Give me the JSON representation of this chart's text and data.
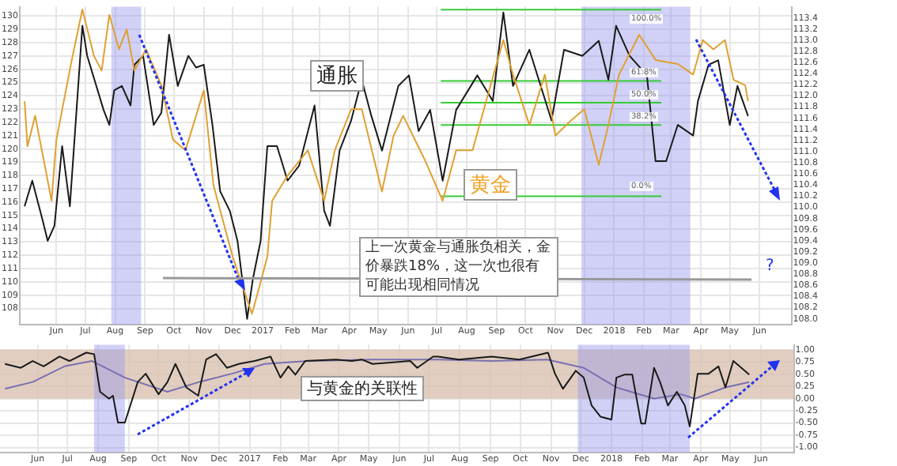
{
  "chart_data": [
    {
      "type": "line",
      "marker": "none",
      "line_style": "solid",
      "grid": true,
      "xlim": [
        "2016-04-24",
        "2018-07-04"
      ],
      "xticks": [
        {
          "value": "2016-06-01",
          "label": "Jun"
        },
        {
          "value": "2016-07-01",
          "label": "Jul"
        },
        {
          "value": "2016-08-01",
          "label": "Aug"
        },
        {
          "value": "2016-09-01",
          "label": "Sep"
        },
        {
          "value": "2016-10-01",
          "label": "Oct"
        },
        {
          "value": "2016-11-01",
          "label": "Nov"
        },
        {
          "value": "2016-12-01",
          "label": "Dec"
        },
        {
          "value": "2017-01-01",
          "label": "2017"
        },
        {
          "value": "2017-02-01",
          "label": "Feb"
        },
        {
          "value": "2017-03-01",
          "label": "Mar"
        },
        {
          "value": "2017-04-01",
          "label": "Apr"
        },
        {
          "value": "2017-05-01",
          "label": "May"
        },
        {
          "value": "2017-06-01",
          "label": "Jun"
        },
        {
          "value": "2017-07-01",
          "label": "Jul"
        },
        {
          "value": "2017-08-01",
          "label": "Aug"
        },
        {
          "value": "2017-09-01",
          "label": "Sep"
        },
        {
          "value": "2017-10-01",
          "label": "Oct"
        },
        {
          "value": "2017-11-01",
          "label": "Nov"
        },
        {
          "value": "2017-12-01",
          "label": "Dec"
        },
        {
          "value": "2018-01-01",
          "label": "2018"
        },
        {
          "value": "2018-02-01",
          "label": "Feb"
        },
        {
          "value": "2018-03-01",
          "label": "Mar"
        },
        {
          "value": "2018-04-01",
          "label": "Apr"
        },
        {
          "value": "2018-05-01",
          "label": "May"
        },
        {
          "value": "2018-06-01",
          "label": "Jun"
        }
      ],
      "ylim": [
        106.8,
        130.7
      ],
      "yticks": [
        108,
        109,
        110,
        111,
        112,
        113,
        114,
        115,
        116,
        117,
        118,
        119,
        120,
        121,
        122,
        123,
        124,
        125,
        126,
        127,
        128,
        129,
        130
      ],
      "y2lim": [
        107.9,
        113.6
      ],
      "y2ticks": [
        {
          "value": 108,
          "label": "108.0"
        },
        108.2,
        108.4,
        108.6,
        108.8,
        {
          "value": 109,
          "label": "109.0"
        },
        109.2,
        109.4,
        109.6,
        109.8,
        {
          "value": 110,
          "label": "110.0"
        },
        110.2,
        110.4,
        110.6,
        110.8,
        {
          "value": 111,
          "label": "111.0"
        },
        111.2,
        111.4,
        111.6,
        111.8,
        {
          "value": 112,
          "label": "112.0"
        },
        112.2,
        112.4,
        112.6,
        112.8,
        {
          "value": 113,
          "label": "113.0"
        },
        113.2,
        113.4
      ],
      "series": [
        {
          "color": "#e0a030",
          "x": [
            "2016-04-29",
            "2016-05-02",
            "2016-05-10",
            "2016-05-22",
            "2016-05-27",
            "2016-06-01",
            "2016-06-17",
            "2016-06-28",
            "2016-07-10",
            "2016-07-18",
            "2016-07-26",
            "2016-08-05",
            "2016-08-13",
            "2016-08-21",
            "2016-09-02",
            "2016-09-18",
            "2016-09-30",
            "2016-10-13",
            "2016-11-01",
            "2016-11-11",
            "2016-12-01",
            "2016-12-21",
            "2016-12-29",
            "2017-01-06",
            "2017-01-11",
            "2017-01-27",
            "2017-02-17",
            "2017-03-06",
            "2017-03-17",
            "2017-04-03",
            "2017-04-14",
            "2017-05-05",
            "2017-05-17",
            "2017-05-27",
            "2017-06-19",
            "2017-07-07",
            "2017-07-21",
            "2017-08-07",
            "2017-08-23",
            "2017-09-08",
            "2017-09-18",
            "2017-10-05",
            "2017-10-21",
            "2017-11-01",
            "2017-11-18",
            "2017-12-01",
            "2017-12-16",
            "2017-12-26",
            "2018-01-06",
            "2018-01-27",
            "2018-02-13",
            "2018-03-08",
            "2018-03-24",
            "2018-04-03",
            "2018-04-14",
            "2018-04-26",
            "2018-05-05",
            "2018-05-17",
            "2018-05-20"
          ],
          "values": [
            123.6,
            120.2,
            122.5,
            118.0,
            116.1,
            120.7,
            126.7,
            130.5,
            127.0,
            125.9,
            130.1,
            127.5,
            129.0,
            125.9,
            127.5,
            124.8,
            120.7,
            119.9,
            124.4,
            117.3,
            111.9,
            107.6,
            109.7,
            111.9,
            116.1,
            118.0,
            119.9,
            116.1,
            119.9,
            123.0,
            123.0,
            116.8,
            121.0,
            122.5,
            119.1,
            116.1,
            119.9,
            119.9,
            124.1,
            128.2,
            125.6,
            121.8,
            125.6,
            121.0,
            122.2,
            123.0,
            118.8,
            121.8,
            125.6,
            128.6,
            126.7,
            126.4,
            125.6,
            128.2,
            127.5,
            128.2,
            125.2,
            124.8,
            123.6
          ]
        },
        {
          "color": "#1a1a1a",
          "axis": "y2",
          "x": [
            "2016-04-29",
            "2016-05-07",
            "2016-05-18",
            "2016-05-23",
            "2016-05-30",
            "2016-06-07",
            "2016-06-15",
            "2016-06-28",
            "2016-07-03",
            "2016-07-20",
            "2016-07-26",
            "2016-07-31",
            "2016-08-08",
            "2016-08-17",
            "2016-08-21",
            "2016-08-30",
            "2016-09-10",
            "2016-09-18",
            "2016-09-26",
            "2016-10-05",
            "2016-10-16",
            "2016-10-24",
            "2016-11-01",
            "2016-11-10",
            "2016-11-18",
            "2016-11-28",
            "2016-12-06",
            "2016-12-16",
            "2016-12-22",
            "2016-12-30",
            "2017-01-06",
            "2017-01-16",
            "2017-01-27",
            "2017-02-08",
            "2017-02-24",
            "2017-03-06",
            "2017-03-12",
            "2017-03-22",
            "2017-04-03",
            "2017-04-14",
            "2017-04-24",
            "2017-05-05",
            "2017-05-22",
            "2017-06-02",
            "2017-06-12",
            "2017-06-24",
            "2017-07-07",
            "2017-07-21",
            "2017-08-12",
            "2017-08-28",
            "2017-09-08",
            "2017-09-18",
            "2017-10-05",
            "2017-10-28",
            "2017-11-10",
            "2017-11-29",
            "2017-12-16",
            "2017-12-26",
            "2018-01-03",
            "2018-01-17",
            "2018-02-04",
            "2018-02-13",
            "2018-02-24",
            "2018-03-08",
            "2018-03-24",
            "2018-03-29",
            "2018-04-09",
            "2018-04-19",
            "2018-05-01",
            "2018-05-09",
            "2018-05-20"
          ],
          "values": [
            110.02,
            110.48,
            109.75,
            109.4,
            109.67,
            111.1,
            110.02,
            113.26,
            112.72,
            111.75,
            111.48,
            112.1,
            112.18,
            111.83,
            112.56,
            112.72,
            111.48,
            111.7,
            113.1,
            112.18,
            112.72,
            112.51,
            112.56,
            111.48,
            110.29,
            109.94,
            109.4,
            108.0,
            108.72,
            109.4,
            111.1,
            111.1,
            110.48,
            110.75,
            111.83,
            109.94,
            109.67,
            111.02,
            111.56,
            112.29,
            111.64,
            111.02,
            112.18,
            112.37,
            111.37,
            111.75,
            110.48,
            111.75,
            112.37,
            111.91,
            113.5,
            112.18,
            112.83,
            111.56,
            112.83,
            112.72,
            112.99,
            112.29,
            113.26,
            112.72,
            112.37,
            110.83,
            110.83,
            111.48,
            111.29,
            111.91,
            112.56,
            112.64,
            111.48,
            112.18,
            111.64
          ]
        },
        {
          "color": "#33cc33",
          "axis": "y2",
          "x": [
            "2017-07-05",
            "2018-02-19"
          ],
          "values": [
            113.55,
            113.55
          ]
        },
        {
          "color": "#33cc33",
          "axis": "y2",
          "x": [
            "2017-07-05",
            "2018-02-19"
          ],
          "values": [
            112.27,
            112.27
          ]
        },
        {
          "color": "#33cc33",
          "axis": "y2",
          "x": [
            "2017-07-05",
            "2018-02-19"
          ],
          "values": [
            111.88,
            111.88
          ]
        },
        {
          "color": "#33cc33",
          "axis": "y2",
          "x": [
            "2017-07-05",
            "2018-02-19"
          ],
          "values": [
            111.48,
            111.48
          ]
        },
        {
          "color": "#33cc33",
          "axis": "y2",
          "x": [
            "2017-07-05",
            "2018-02-19"
          ],
          "values": [
            110.2,
            110.2
          ]
        }
      ],
      "bands": [
        {
          "axis": "x",
          "from": "2016-07-28",
          "to": "2016-08-28",
          "color": "#9999ee"
        },
        {
          "axis": "x",
          "from": "2017-11-28",
          "to": "2018-03-21",
          "color": "#9999ee"
        }
      ],
      "annotations": [
        "通胀",
        "黄金",
        "上一次黄金与通胀负相关，金价暴跌18%，这一次也很有可能出现相同情况",
        "?",
        "100.0%",
        "61.8%",
        "50.0%",
        "38.2%",
        "0.0%"
      ]
    },
    {
      "type": "line",
      "marker": "none",
      "line_style": "solid",
      "grid": true,
      "xlim": [
        "2016-04-24",
        "2018-07-04"
      ],
      "xticks": [
        {
          "value": "2016-06-01",
          "label": "Jun"
        },
        {
          "value": "2016-07-01",
          "label": "Jul"
        },
        {
          "value": "2016-08-01",
          "label": "Aug"
        },
        {
          "value": "2016-09-01",
          "label": "Sep"
        },
        {
          "value": "2016-10-01",
          "label": "Oct"
        },
        {
          "value": "2016-11-01",
          "label": "Nov"
        },
        {
          "value": "2016-12-01",
          "label": "Dec"
        },
        {
          "value": "2017-01-01",
          "label": "2017"
        },
        {
          "value": "2017-02-01",
          "label": "Feb"
        },
        {
          "value": "2017-03-01",
          "label": "Mar"
        },
        {
          "value": "2017-04-01",
          "label": "Apr"
        },
        {
          "value": "2017-05-01",
          "label": "May"
        },
        {
          "value": "2017-06-01",
          "label": "Jun"
        },
        {
          "value": "2017-07-01",
          "label": "Jul"
        },
        {
          "value": "2017-08-01",
          "label": "Aug"
        },
        {
          "value": "2017-09-01",
          "label": "Sep"
        },
        {
          "value": "2017-10-01",
          "label": "Oct"
        },
        {
          "value": "2017-11-01",
          "label": "Nov"
        },
        {
          "value": "2017-12-01",
          "label": "Dec"
        },
        {
          "value": "2018-01-01",
          "label": "2018"
        },
        {
          "value": "2018-02-01",
          "label": "Feb"
        },
        {
          "value": "2018-03-01",
          "label": "Mar"
        },
        {
          "value": "2018-04-01",
          "label": "Apr"
        },
        {
          "value": "2018-05-01",
          "label": "May"
        },
        {
          "value": "2018-06-01",
          "label": "Jun"
        }
      ],
      "ylim": [
        -1.1,
        1.1
      ],
      "yticks": [
        {
          "value": -1,
          "label": "-1.00"
        },
        {
          "value": -0.75,
          "label": "-0.75"
        },
        {
          "value": -0.5,
          "label": "-0.50"
        },
        {
          "value": -0.25,
          "label": "-0.25"
        },
        {
          "value": 0,
          "label": "0.00"
        },
        {
          "value": 0.25,
          "label": "0.25"
        },
        {
          "value": 0.5,
          "label": "0.50"
        },
        {
          "value": 0.75,
          "label": "0.75"
        },
        {
          "value": 1,
          "label": "1.00"
        }
      ],
      "series": [
        {
          "color": "#1a1a1a",
          "x": [
            "2016-04-29",
            "2016-05-15",
            "2016-05-27",
            "2016-06-07",
            "2016-06-23",
            "2016-07-03",
            "2016-07-20",
            "2016-07-28",
            "2016-08-03",
            "2016-08-12",
            "2016-08-16",
            "2016-08-21",
            "2016-08-28",
            "2016-09-10",
            "2016-09-18",
            "2016-10-01",
            "2016-10-10",
            "2016-10-18",
            "2016-10-29",
            "2016-11-10",
            "2016-11-18",
            "2016-11-28",
            "2016-12-09",
            "2016-12-21",
            "2017-01-06",
            "2017-01-22",
            "2017-02-01",
            "2017-02-09",
            "2017-02-16",
            "2017-02-26",
            "2017-03-29",
            "2017-04-14",
            "2017-04-24",
            "2017-05-05",
            "2017-06-12",
            "2017-06-19",
            "2017-07-05",
            "2017-07-10",
            "2017-07-31",
            "2017-09-02",
            "2017-09-30",
            "2017-10-29",
            "2017-11-05",
            "2017-11-13",
            "2017-11-26",
            "2017-12-04",
            "2017-12-12",
            "2017-12-21",
            "2018-01-01",
            "2018-01-06",
            "2018-01-14",
            "2018-01-22",
            "2018-01-31",
            "2018-02-04",
            "2018-02-13",
            "2018-02-19",
            "2018-02-27",
            "2018-03-08",
            "2018-03-16",
            "2018-03-21",
            "2018-03-29",
            "2018-04-09",
            "2018-04-19",
            "2018-04-26",
            "2018-05-04",
            "2018-05-20"
          ],
          "values": [
            0.71,
            0.63,
            0.77,
            0.66,
            0.86,
            0.77,
            0.94,
            0.91,
            0.14,
            0,
            0.06,
            -0.49,
            -0.49,
            0.34,
            0.51,
            0.09,
            0.34,
            0.71,
            0.23,
            0.06,
            0.8,
            0.91,
            0.63,
            0.71,
            0.77,
            0.86,
            0.43,
            0.66,
            0.49,
            0.77,
            0.8,
            0.77,
            0.8,
            0.71,
            0.77,
            0.63,
            0.86,
            0.86,
            0.8,
            0.86,
            0.8,
            0.94,
            0.51,
            0.2,
            0.57,
            0.43,
            -0.14,
            -0.37,
            -0.43,
            0.43,
            0.49,
            0.49,
            -0.51,
            -0.51,
            0.63,
            0.34,
            -0.14,
            0.14,
            -0.14,
            -0.57,
            0.51,
            0.51,
            0.66,
            0.23,
            0.77,
            0.49
          ]
        },
        {
          "color": "#7a70b0",
          "x": [
            "2016-04-29",
            "2016-05-27",
            "2016-06-28",
            "2016-07-26",
            "2016-08-28",
            "2016-10-10",
            "2016-11-11",
            "2016-12-14",
            "2017-01-16",
            "2017-03-01",
            "2017-05-05",
            "2017-07-10",
            "2017-09-02",
            "2017-10-28",
            "2017-12-04",
            "2018-01-06",
            "2018-02-13",
            "2018-03-12",
            "2018-03-26",
            "2018-04-26",
            "2018-05-20"
          ],
          "values": [
            0.2,
            0.34,
            0.66,
            0.77,
            0.43,
            0.14,
            0.34,
            0.51,
            0.71,
            0.77,
            0.8,
            0.8,
            0.77,
            0.8,
            0.63,
            0.23,
            0,
            0.09,
            0,
            0.23,
            0.34
          ]
        }
      ],
      "bands": [
        {
          "axis": "y",
          "from": 0,
          "to": 1,
          "color": "#d9c2b0"
        },
        {
          "axis": "x",
          "from": "2016-07-28",
          "to": "2016-08-28",
          "color": "#9999ee"
        },
        {
          "axis": "x",
          "from": "2017-11-28",
          "to": "2018-03-21",
          "color": "#9999ee"
        }
      ],
      "annotations": [
        "与黄金的关联性"
      ]
    }
  ]
}
